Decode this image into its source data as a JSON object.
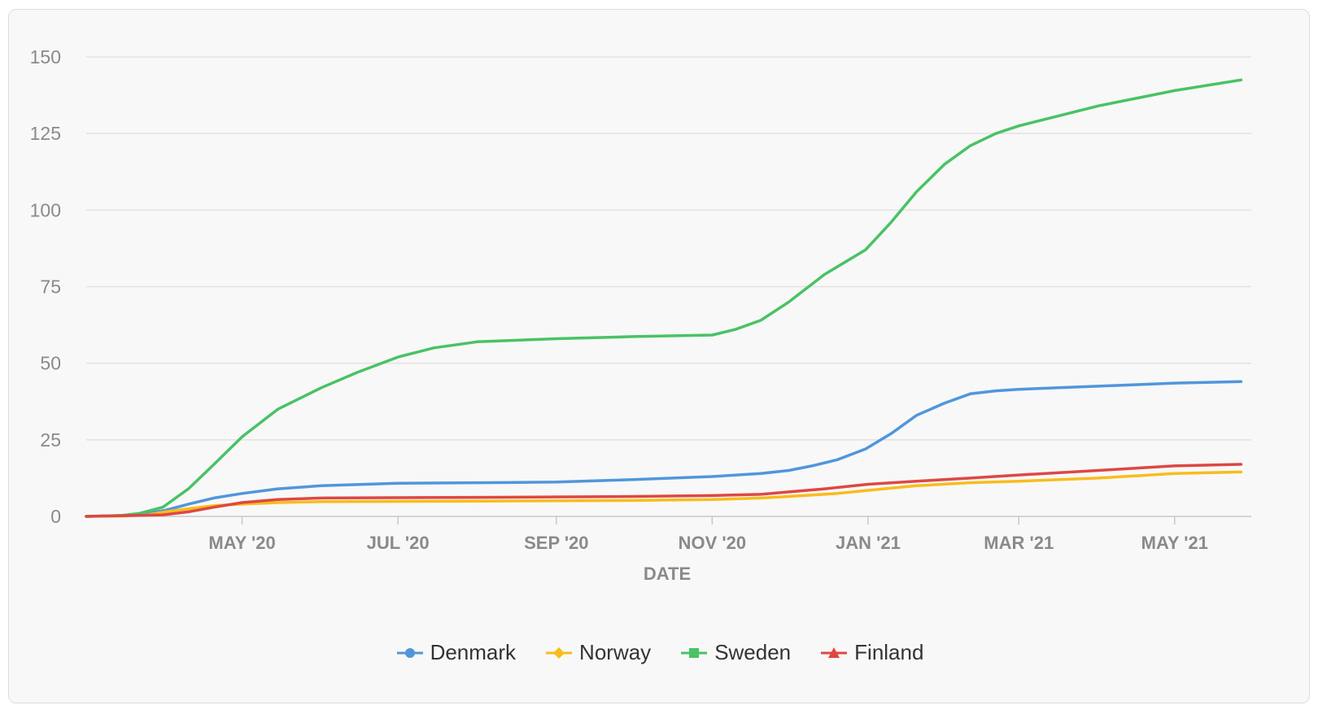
{
  "chart_data": {
    "type": "line",
    "title": "",
    "xlabel": "DATE",
    "ylabel": "",
    "ylim": [
      0,
      150
    ],
    "yticks": [
      0,
      25,
      50,
      75,
      100,
      125,
      150
    ],
    "xlim": [
      "2020-03-01",
      "2021-05-31"
    ],
    "xticks": [
      {
        "label": "MAY '20",
        "date": "2020-05-01"
      },
      {
        "label": "JUL '20",
        "date": "2020-07-01"
      },
      {
        "label": "SEP '20",
        "date": "2020-09-01"
      },
      {
        "label": "NOV '20",
        "date": "2020-11-01"
      },
      {
        "label": "JAN '21",
        "date": "2021-01-01"
      },
      {
        "label": "MAR '21",
        "date": "2021-03-01"
      },
      {
        "label": "MAY '21",
        "date": "2021-05-01"
      }
    ],
    "grid": true,
    "legend_position": "bottom",
    "series": [
      {
        "name": "Denmark",
        "color": "#5196db",
        "marker": "circle",
        "points": [
          [
            "2020-03-01",
            0
          ],
          [
            "2020-03-15",
            0.3
          ],
          [
            "2020-03-25",
            1
          ],
          [
            "2020-04-01",
            2
          ],
          [
            "2020-04-10",
            4
          ],
          [
            "2020-04-20",
            6
          ],
          [
            "2020-05-01",
            7.5
          ],
          [
            "2020-05-15",
            9
          ],
          [
            "2020-06-01",
            10
          ],
          [
            "2020-07-01",
            10.8
          ],
          [
            "2020-08-01",
            11
          ],
          [
            "2020-09-01",
            11.2
          ],
          [
            "2020-10-01",
            12
          ],
          [
            "2020-11-01",
            13
          ],
          [
            "2020-11-20",
            14
          ],
          [
            "2020-12-01",
            15
          ],
          [
            "2020-12-10",
            16.5
          ],
          [
            "2020-12-20",
            18.5
          ],
          [
            "2020-12-31",
            22
          ],
          [
            "2021-01-10",
            27
          ],
          [
            "2021-01-20",
            33
          ],
          [
            "2021-01-31",
            37
          ],
          [
            "2021-02-10",
            40
          ],
          [
            "2021-02-20",
            41
          ],
          [
            "2021-03-01",
            41.5
          ],
          [
            "2021-04-01",
            42.5
          ],
          [
            "2021-05-01",
            43.5
          ],
          [
            "2021-05-27",
            44
          ]
        ]
      },
      {
        "name": "Norway",
        "color": "#f8bc1c",
        "marker": "diamond",
        "points": [
          [
            "2020-03-01",
            0
          ],
          [
            "2020-03-15",
            0.1
          ],
          [
            "2020-03-25",
            0.5
          ],
          [
            "2020-04-01",
            1.5
          ],
          [
            "2020-04-10",
            2.5
          ],
          [
            "2020-04-20",
            3.5
          ],
          [
            "2020-05-01",
            4
          ],
          [
            "2020-05-15",
            4.5
          ],
          [
            "2020-06-01",
            4.8
          ],
          [
            "2020-08-01",
            5
          ],
          [
            "2020-10-01",
            5.2
          ],
          [
            "2020-11-01",
            5.5
          ],
          [
            "2020-11-20",
            6
          ],
          [
            "2020-12-01",
            6.5
          ],
          [
            "2020-12-20",
            7.5
          ],
          [
            "2021-01-01",
            8.5
          ],
          [
            "2021-01-20",
            10
          ],
          [
            "2021-02-10",
            11
          ],
          [
            "2021-03-01",
            11.5
          ],
          [
            "2021-04-01",
            12.5
          ],
          [
            "2021-05-01",
            14
          ],
          [
            "2021-05-27",
            14.5
          ]
        ]
      },
      {
        "name": "Sweden",
        "color": "#49c265",
        "marker": "square",
        "points": [
          [
            "2020-03-01",
            0
          ],
          [
            "2020-03-15",
            0.3
          ],
          [
            "2020-03-22",
            1
          ],
          [
            "2020-03-31",
            3
          ],
          [
            "2020-04-10",
            9
          ],
          [
            "2020-04-20",
            17
          ],
          [
            "2020-05-01",
            26
          ],
          [
            "2020-05-15",
            35
          ],
          [
            "2020-06-01",
            42
          ],
          [
            "2020-06-15",
            47
          ],
          [
            "2020-07-01",
            52
          ],
          [
            "2020-07-15",
            55
          ],
          [
            "2020-08-01",
            57
          ],
          [
            "2020-09-01",
            58
          ],
          [
            "2020-10-01",
            58.7
          ],
          [
            "2020-11-01",
            59.2
          ],
          [
            "2020-11-10",
            61
          ],
          [
            "2020-11-20",
            64
          ],
          [
            "2020-12-01",
            70
          ],
          [
            "2020-12-15",
            79
          ],
          [
            "2020-12-31",
            87
          ],
          [
            "2021-01-10",
            96
          ],
          [
            "2021-01-20",
            106
          ],
          [
            "2021-01-31",
            115
          ],
          [
            "2021-02-10",
            121
          ],
          [
            "2021-02-20",
            125
          ],
          [
            "2021-03-01",
            127.5
          ],
          [
            "2021-04-01",
            134
          ],
          [
            "2021-05-01",
            139
          ],
          [
            "2021-05-27",
            142.5
          ]
        ]
      },
      {
        "name": "Finland",
        "color": "#df4742",
        "marker": "triangle",
        "points": [
          [
            "2020-03-01",
            0
          ],
          [
            "2020-03-31",
            0.5
          ],
          [
            "2020-04-10",
            1.5
          ],
          [
            "2020-04-20",
            3
          ],
          [
            "2020-05-01",
            4.5
          ],
          [
            "2020-05-15",
            5.5
          ],
          [
            "2020-06-01",
            6
          ],
          [
            "2020-08-01",
            6.2
          ],
          [
            "2020-10-01",
            6.5
          ],
          [
            "2020-11-01",
            6.8
          ],
          [
            "2020-11-20",
            7.2
          ],
          [
            "2020-12-01",
            8
          ],
          [
            "2020-12-15",
            9
          ],
          [
            "2021-01-01",
            10.5
          ],
          [
            "2021-01-20",
            11.5
          ],
          [
            "2021-02-10",
            12.5
          ],
          [
            "2021-03-01",
            13.5
          ],
          [
            "2021-04-01",
            15
          ],
          [
            "2021-05-01",
            16.5
          ],
          [
            "2021-05-27",
            17
          ]
        ]
      }
    ]
  }
}
